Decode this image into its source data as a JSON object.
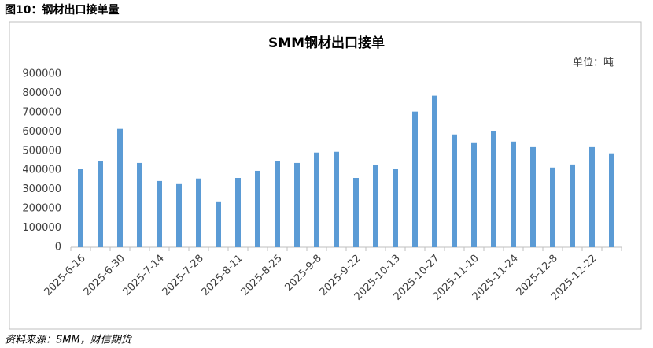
{
  "header": "图10：钢材出口接单量",
  "source": "资料来源：SMM，财信期货",
  "chart_data": {
    "type": "bar",
    "title": "SMM钢材出口接单",
    "unit_label": "单位：吨",
    "categories": [
      "2025-6-16",
      null,
      "2025-6-30",
      null,
      "2025-7-14",
      null,
      "2025-7-28",
      null,
      "2025-8-11",
      null,
      "2025-8-25",
      null,
      "2025-9-8",
      null,
      "2025-9-22",
      null,
      "2025-10-13",
      null,
      "2025-10-27",
      null,
      "2025-11-10",
      null,
      "2025-11-24",
      null,
      "2025-12-8",
      null,
      "2025-12-22",
      null
    ],
    "values": [
      405000,
      450000,
      615000,
      438000,
      344000,
      328000,
      357000,
      238000,
      360000,
      397000,
      450000,
      438000,
      492000,
      496000,
      360000,
      426000,
      405000,
      705000,
      787000,
      586000,
      545000,
      602000,
      549000,
      520000,
      414000,
      430000,
      520000,
      488000
    ],
    "color": "#5b9bd5",
    "ylim": [
      0,
      900000
    ],
    "yticks": [
      0,
      100000,
      200000,
      300000,
      400000,
      500000,
      600000,
      700000,
      800000,
      900000
    ],
    "grid": false
  }
}
